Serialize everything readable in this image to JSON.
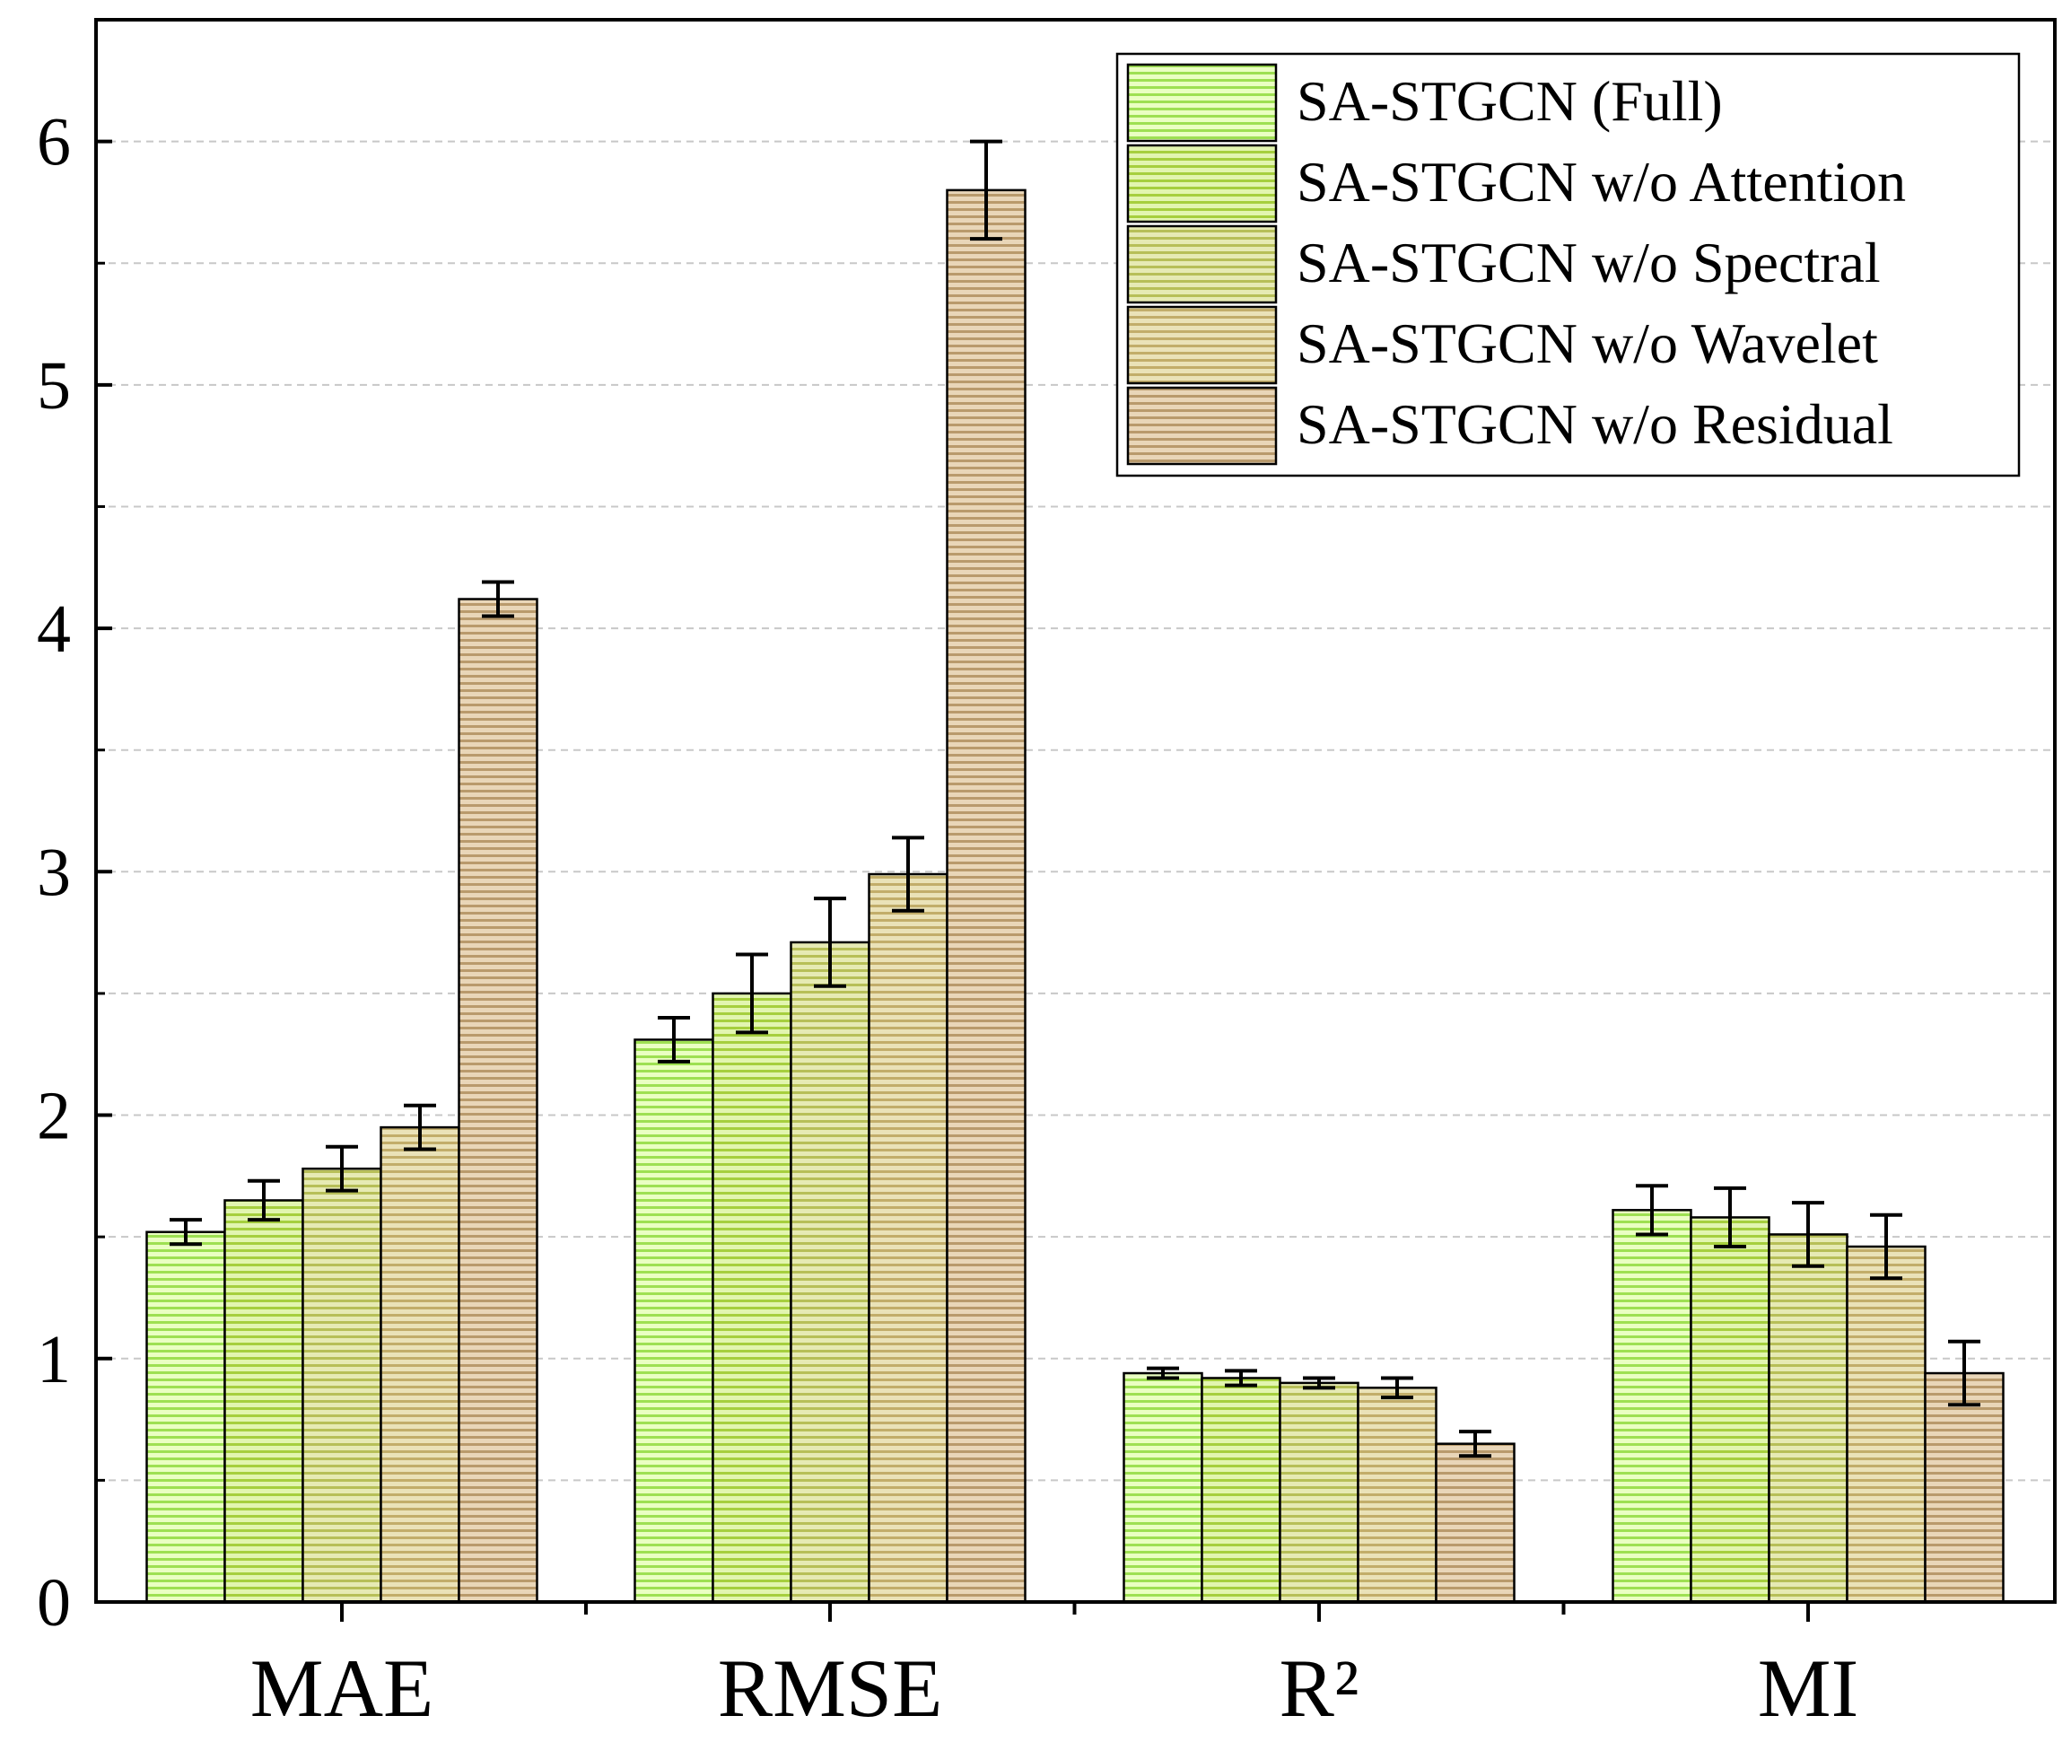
{
  "chart_data": {
    "type": "bar",
    "title": "",
    "xlabel": "",
    "ylabel": "",
    "categories": [
      "MAE",
      "RMSE",
      "R²",
      "MI"
    ],
    "ylim": [
      0,
      6.5
    ],
    "yticks": [
      0,
      1,
      2,
      3,
      4,
      5,
      6
    ],
    "yticks_minor": [
      0.5,
      1.5,
      2.5,
      3.5,
      4.5,
      5.5
    ],
    "grid": true,
    "legend_position": "top-right",
    "series": [
      {
        "name": "SA-STGCN (Full)",
        "color": "#eaffc2",
        "stripe": "#9ee052",
        "values": [
          1.52,
          2.31,
          0.94,
          1.61
        ],
        "errors": [
          0.05,
          0.09,
          0.02,
          0.1
        ]
      },
      {
        "name": "SA-STGCN w/o Attention",
        "color": "#e2f5b0",
        "stripe": "#a6cf3e",
        "values": [
          1.65,
          2.5,
          0.92,
          1.58
        ],
        "errors": [
          0.08,
          0.16,
          0.03,
          0.12
        ]
      },
      {
        "name": "SA-STGCN w/o Spectral",
        "color": "#e6eab4",
        "stripe": "#b7bf58",
        "values": [
          1.78,
          2.71,
          0.9,
          1.51
        ],
        "errors": [
          0.09,
          0.18,
          0.02,
          0.13
        ]
      },
      {
        "name": "SA-STGCN w/o Wavelet",
        "color": "#eae2b8",
        "stripe": "#c2ad6a",
        "values": [
          1.95,
          2.99,
          0.88,
          1.46
        ],
        "errors": [
          0.09,
          0.15,
          0.04,
          0.13
        ]
      },
      {
        "name": "SA-STGCN w/o Residual",
        "color": "#e9d6b8",
        "stripe": "#b99a6c",
        "values": [
          4.12,
          5.8,
          0.65,
          0.94
        ],
        "errors": [
          0.07,
          0.2,
          0.05,
          0.13
        ]
      }
    ]
  }
}
